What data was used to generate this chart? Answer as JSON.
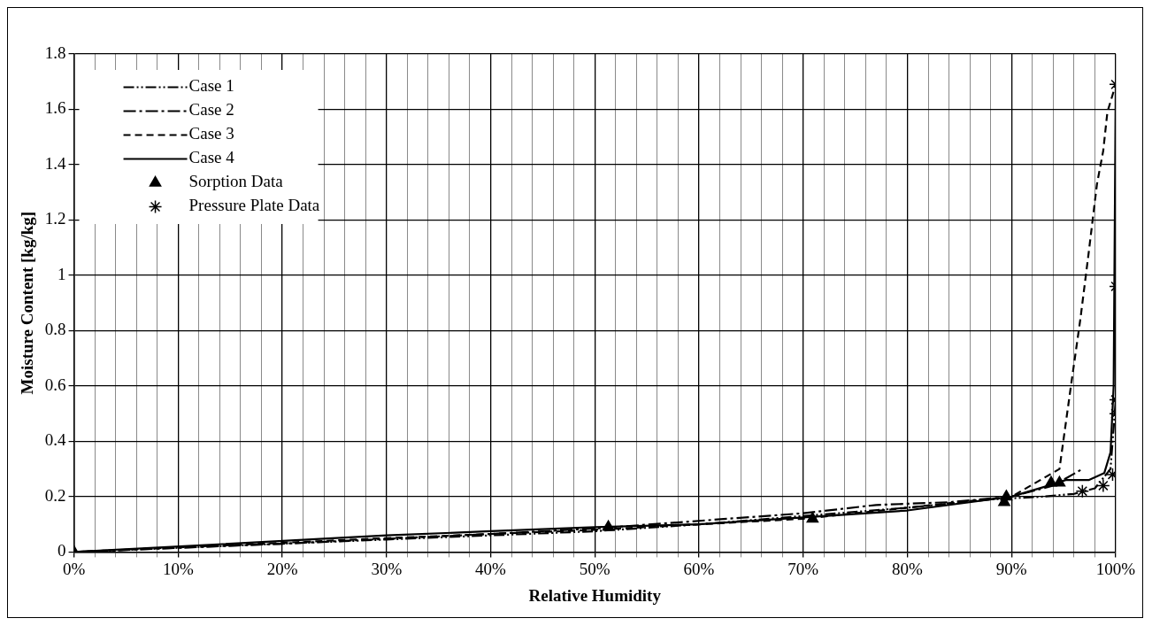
{
  "chart_data": {
    "type": "line",
    "xlabel": "Relative Humidity",
    "ylabel": "Moisture Content [kg/kg]",
    "xlim": [
      0,
      100
    ],
    "xticks": [
      {
        "value": 0,
        "label": "0%"
      },
      {
        "value": 2,
        "label": null
      },
      {
        "value": 4,
        "label": null
      },
      {
        "value": 6,
        "label": null
      },
      {
        "value": 8,
        "label": null
      },
      {
        "value": 10,
        "label": "10%"
      },
      {
        "value": 12,
        "label": null
      },
      {
        "value": 14,
        "label": null
      },
      {
        "value": 16,
        "label": null
      },
      {
        "value": 18,
        "label": null
      },
      {
        "value": 20,
        "label": "20%"
      },
      {
        "value": 22,
        "label": null
      },
      {
        "value": 24,
        "label": null
      },
      {
        "value": 26,
        "label": null
      },
      {
        "value": 28,
        "label": null
      },
      {
        "value": 30,
        "label": "30%"
      },
      {
        "value": 32,
        "label": null
      },
      {
        "value": 34,
        "label": null
      },
      {
        "value": 36,
        "label": null
      },
      {
        "value": 38,
        "label": null
      },
      {
        "value": 40,
        "label": "40%"
      },
      {
        "value": 42,
        "label": null
      },
      {
        "value": 44,
        "label": null
      },
      {
        "value": 46,
        "label": null
      },
      {
        "value": 48,
        "label": null
      },
      {
        "value": 50,
        "label": "50%"
      },
      {
        "value": 52,
        "label": null
      },
      {
        "value": 54,
        "label": null
      },
      {
        "value": 56,
        "label": null
      },
      {
        "value": 58,
        "label": null
      },
      {
        "value": 60,
        "label": "60%"
      },
      {
        "value": 62,
        "label": null
      },
      {
        "value": 64,
        "label": null
      },
      {
        "value": 66,
        "label": null
      },
      {
        "value": 68,
        "label": null
      },
      {
        "value": 70,
        "label": "70%"
      },
      {
        "value": 72,
        "label": null
      },
      {
        "value": 74,
        "label": null
      },
      {
        "value": 76,
        "label": null
      },
      {
        "value": 78,
        "label": null
      },
      {
        "value": 80,
        "label": "80%"
      },
      {
        "value": 82,
        "label": null
      },
      {
        "value": 84,
        "label": null
      },
      {
        "value": 86,
        "label": null
      },
      {
        "value": 88,
        "label": null
      },
      {
        "value": 90,
        "label": "90%"
      },
      {
        "value": 92,
        "label": null
      },
      {
        "value": 94,
        "label": null
      },
      {
        "value": 96,
        "label": null
      },
      {
        "value": 98,
        "label": null
      },
      {
        "value": 100,
        "label": "100%"
      }
    ],
    "ylim": [
      0,
      1.8
    ],
    "yticks": [
      0,
      0.2,
      0.4,
      0.6,
      0.8,
      1,
      1.2,
      1.4,
      1.6,
      1.8
    ],
    "grid": true,
    "legend": "top left",
    "series": [
      {
        "name": "Case 1",
        "color": "#000000",
        "line_style": "dash-dot-dot",
        "marker": "none",
        "x": [
          0,
          20,
          30,
          40,
          50,
          60,
          70,
          80,
          88,
          93,
          96,
          98,
          99.5,
          100
        ],
        "values": [
          0,
          0.03,
          0.045,
          0.06,
          0.075,
          0.1,
          0.13,
          0.16,
          0.19,
          0.2,
          0.21,
          0.23,
          0.3,
          0.55
        ]
      },
      {
        "name": "Case 2",
        "color": "#000000",
        "line_style": "dash-dot",
        "marker": "none",
        "x": [
          0,
          20,
          40,
          50,
          70,
          77,
          84,
          90,
          94,
          96.8
        ],
        "values": [
          0,
          0.03,
          0.065,
          0.085,
          0.14,
          0.17,
          0.18,
          0.2,
          0.24,
          0.3
        ]
      },
      {
        "name": "Case 3",
        "color": "#000000",
        "line_style": "dashed",
        "marker": "none",
        "x": [
          0,
          30,
          50,
          70,
          90,
          94.6,
          95.7,
          96.6,
          97.4,
          98.2,
          98.8,
          99.2,
          100
        ],
        "values": [
          0,
          0.05,
          0.08,
          0.12,
          0.2,
          0.3,
          0.6,
          0.84,
          1.08,
          1.33,
          1.45,
          1.59,
          1.69
        ]
      },
      {
        "name": "Case 4",
        "color": "#000000",
        "line_style": "solid",
        "marker": "none",
        "x": [
          0,
          30,
          40,
          50,
          60,
          70,
          80,
          90,
          94,
          95.2,
          97.4,
          98.9,
          99.5,
          99.8,
          100
        ],
        "values": [
          0,
          0.06,
          0.075,
          0.09,
          0.1,
          0.125,
          0.15,
          0.2,
          0.245,
          0.26,
          0.26,
          0.285,
          0.36,
          0.6,
          1.69
        ]
      },
      {
        "name": "Sorption Data",
        "type": "scatter",
        "color": "#000000",
        "marker": "triangle",
        "x": [
          0,
          51.3,
          70.9,
          89.3,
          89.5,
          93.8,
          94.6
        ],
        "values": [
          0,
          0.09,
          0.12,
          0.18,
          0.2,
          0.25,
          0.25
        ]
      },
      {
        "name": "Pressure Plate Data",
        "type": "scatter",
        "color": "#000000",
        "marker": "cross",
        "x": [
          96.8,
          98.8,
          99.7,
          100,
          100,
          100,
          100
        ],
        "values": [
          0.22,
          0.24,
          0.28,
          0.5,
          0.55,
          0.96,
          1.69
        ]
      }
    ]
  }
}
